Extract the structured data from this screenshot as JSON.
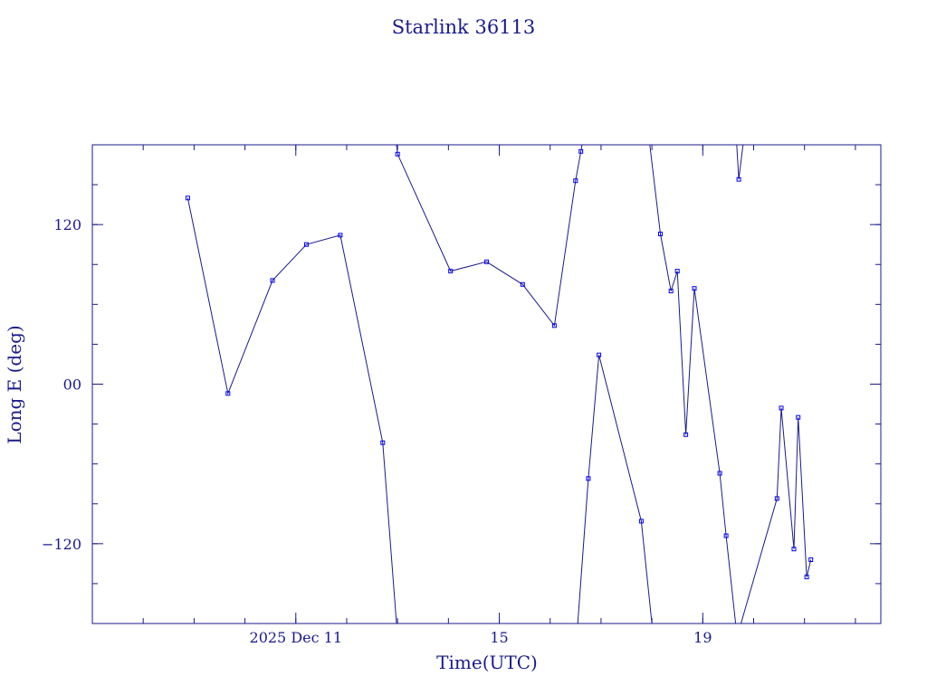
{
  "chart_data": {
    "type": "line",
    "title": "Starlink 36113",
    "xlabel": "Time(UTC)",
    "ylabel": "Long E (deg)",
    "xlim": [
      "2025-12-07T00:00",
      "2025-12-22T12:00"
    ],
    "ylim": [
      -180,
      180
    ],
    "yticks": [
      -120,
      0,
      120
    ],
    "ytick_labels": [
      "−120",
      "00",
      "120"
    ],
    "xticks": [
      {
        "date": "2025-12-11T00:00",
        "label": "2025 Dec 11"
      },
      {
        "date": "2025-12-15T00:00",
        "label": "15"
      },
      {
        "date": "2025-12-19T00:00",
        "label": "19"
      }
    ],
    "x_minor_tick_days": 1,
    "y_minor_tick_step": 30,
    "grid": false,
    "colors": {
      "line": "#1a1a8c",
      "marker": "#0000ff"
    },
    "series": [
      {
        "x": [
          "2025-12-08T21:00",
          "2025-12-09T16:00",
          "2025-12-10T13:00",
          "2025-12-11T05:00",
          "2025-12-11T21:00",
          "2025-12-12T17:00",
          "2025-12-12T23:30"
        ],
        "y": [
          140,
          -7,
          78,
          105,
          112,
          -44,
          -180
        ]
      },
      {
        "x": [
          "2025-12-12T23:30",
          "2025-12-13T00:00",
          "2025-12-14T01:00",
          "2025-12-14T18:00",
          "2025-12-15T11:00",
          "2025-12-16T02:00",
          "2025-12-16T12:00",
          "2025-12-16T14:30",
          "2025-12-16T15:00"
        ],
        "y": [
          180,
          173,
          85,
          92,
          75,
          44,
          153,
          175,
          180
        ]
      },
      {
        "x": [
          "2025-12-16T13:00",
          "2025-12-16T18:00",
          "2025-12-16T23:00",
          "2025-12-17T19:00",
          "2025-12-18T00:00"
        ],
        "y": [
          -180,
          -71,
          22,
          -103,
          -180
        ]
      },
      {
        "x": [
          "2025-12-17T23:00",
          "2025-12-18T04:00",
          "2025-12-18T09:00",
          "2025-12-18T12:00",
          "2025-12-18T16:00",
          "2025-12-18T20:00",
          "2025-12-19T08:00",
          "2025-12-19T11:00",
          "2025-12-19T15:30"
        ],
        "y": [
          180,
          113,
          70,
          85,
          -38,
          72,
          -67,
          -114,
          -180
        ]
      },
      {
        "x": [
          "2025-12-19T16:00",
          "2025-12-19T17:00",
          "2025-12-19T19:00"
        ],
        "y": [
          180,
          154,
          180
        ]
      },
      {
        "x": [
          "2025-12-19T18:00",
          "2025-12-20T11:00",
          "2025-12-20T13:00",
          "2025-12-20T19:00",
          "2025-12-20T21:00",
          "2025-12-21T01:00",
          "2025-12-21T03:00"
        ],
        "y": [
          -180,
          -86,
          -18,
          -124,
          -25,
          -145,
          -132
        ]
      }
    ]
  }
}
